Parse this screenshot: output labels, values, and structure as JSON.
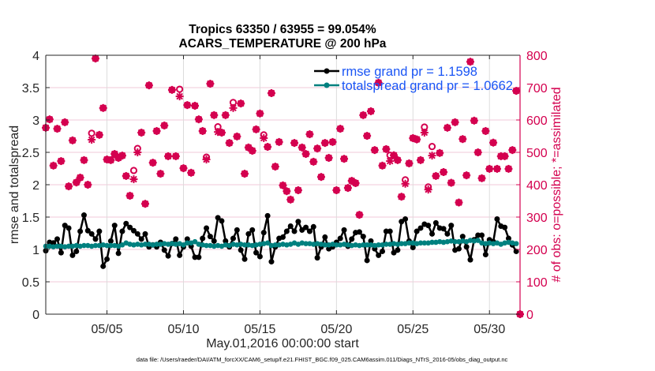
{
  "chart_data": {
    "type": "line",
    "title": [
      "Tropics 63350 / 63955 = 99.054%",
      "ACARS_TEMPERATURE @ 200 hPa"
    ],
    "xlabel": "May.01,2016 00:00:00 start",
    "ylabel_left": "rmse and totalspread",
    "ylabel_right": "# of obs: o=possible; *=assimilated",
    "footer": "data file: /Users/raeder/DAI/ATM_forcXX/CAM6_setup/f.e21.FHIST_BGC.f09_025.CAM6assim.011/Diags_NTrS_2016-05/obs_diag_output.nc",
    "x_units": "days since May.01,2016 00:00",
    "x_step_days": 0.25,
    "xlim": [
      0,
      31
    ],
    "x_ticks": [
      {
        "value": 4,
        "label": "05/05"
      },
      {
        "value": 9,
        "label": "05/10"
      },
      {
        "value": 14,
        "label": "05/15"
      },
      {
        "value": 19,
        "label": "05/20"
      },
      {
        "value": 24,
        "label": "05/25"
      },
      {
        "value": 29,
        "label": "05/30"
      }
    ],
    "ylim_left": [
      0,
      4
    ],
    "y_ticks_left": [
      "0",
      "0.5",
      "1",
      "1.5",
      "2",
      "2.5",
      "3",
      "3.5",
      "4"
    ],
    "ylim_right": [
      0,
      800
    ],
    "y_ticks_right": [
      "0",
      "100",
      "200",
      "300",
      "400",
      "500",
      "600",
      "700",
      "800"
    ],
    "grid": true,
    "legend_position": "top-right",
    "colors": {
      "rmse": "#000000",
      "totalspread": "#00807f",
      "obs": "#d4004f",
      "legend_text": "#1a55f5",
      "right_axis": "#d4004f",
      "grid_h": "#f2c9d8",
      "grid_v": "#dcdcdc"
    },
    "series": [
      {
        "name": "rmse",
        "legend": "rmse grand pr = 1.1598",
        "axis": "left",
        "values": [
          0.98,
          1.11,
          1.1,
          1.16,
          0.95,
          1.37,
          1.33,
          0.91,
          0.97,
          1.28,
          1.53,
          1.29,
          1.24,
          1.16,
          1.28,
          0.74,
          0.85,
          1.13,
          1.37,
          0.94,
          1.28,
          1.4,
          1.34,
          1.29,
          1.24,
          1.16,
          1.24,
          1.04,
          1.07,
          1.04,
          1.11,
          0.99,
          0.9,
          1.09,
          1.16,
          0.91,
          1.04,
          1.16,
          1.05,
          0.88,
          0.88,
          1.17,
          1.33,
          1.2,
          1.13,
          1.49,
          1.44,
          1.13,
          1.04,
          1.17,
          1.3,
          0.99,
          0.85,
          1.24,
          1.3,
          0.95,
          0.89,
          1.26,
          1.52,
          0.81,
          1.04,
          1.17,
          1.19,
          1.28,
          1.36,
          1.28,
          1.43,
          1.3,
          1.34,
          1.28,
          1.35,
          0.87,
          1.04,
          1.19,
          1.01,
          1.04,
          1.11,
          1.17,
          1.3,
          1.05,
          1.16,
          1.26,
          1.27,
          1.2,
          0.83,
          1.13,
          1.01,
          0.91,
          0.97,
          1.28,
          1.28,
          0.95,
          0.99,
          1.43,
          1.47,
          1.13,
          1.03,
          1.28,
          1.33,
          1.39,
          1.37,
          1.24,
          1.41,
          1.33,
          1.32,
          1.24,
          1.37,
          0.99,
          1.01,
          1.2,
          1.04,
          0.84,
          1.15,
          1.22,
          1.22,
          0.92,
          1.15,
          1.12,
          1.47,
          1.36,
          1.34,
          1.17,
          1.07,
          0.97
        ]
      },
      {
        "name": "totalspread",
        "legend": "totalspread grand pr = 1.0662",
        "axis": "left",
        "values": [
          1.05,
          1.05,
          1.04,
          1.05,
          1.05,
          1.04,
          1.05,
          1.05,
          1.06,
          1.05,
          1.06,
          1.06,
          1.05,
          1.06,
          1.06,
          1.07,
          1.06,
          1.06,
          1.06,
          1.05,
          1.07,
          1.1,
          1.08,
          1.07,
          1.08,
          1.07,
          1.08,
          1.08,
          1.07,
          1.08,
          1.08,
          1.09,
          1.08,
          1.09,
          1.08,
          1.09,
          1.07,
          1.1,
          1.1,
          1.12,
          1.08,
          1.07,
          1.06,
          1.06,
          1.05,
          1.06,
          1.05,
          1.07,
          1.06,
          1.08,
          1.07,
          1.08,
          1.07,
          1.07,
          1.06,
          1.07,
          1.08,
          1.09,
          1.1,
          1.06,
          1.07,
          1.07,
          1.08,
          1.07,
          1.08,
          1.1,
          1.08,
          1.1,
          1.09,
          1.09,
          1.08,
          1.09,
          1.08,
          1.07,
          1.07,
          1.08,
          1.07,
          1.07,
          1.08,
          1.07,
          1.06,
          1.07,
          1.06,
          1.07,
          1.07,
          1.07,
          1.06,
          1.07,
          1.07,
          1.08,
          1.08,
          1.09,
          1.08,
          1.09,
          1.09,
          1.1,
          1.1,
          1.09,
          1.1,
          1.1,
          1.1,
          1.11,
          1.11,
          1.12,
          1.11,
          1.12,
          1.13,
          1.12,
          1.12,
          1.13,
          1.12,
          1.14,
          1.13,
          1.14,
          1.1,
          1.09,
          1.1,
          1.09,
          1.1,
          1.08,
          1.1,
          1.11,
          1.1,
          1.09
        ]
      },
      {
        "name": "obs_possible",
        "marker": "o",
        "axis": "right",
        "values": [
          576,
          602,
          459,
          573,
          473,
          593,
          395,
          537,
          407,
          422,
          476,
          400,
          559,
          790,
          554,
          637,
          478,
          476,
          495,
          483,
          490,
          427,
          366,
          444,
          512,
          561,
          341,
          707,
          468,
          566,
          434,
          583,
          488,
          693,
          488,
          695,
          451,
          646,
          437,
          644,
          602,
          566,
          485,
          712,
          615,
          579,
          561,
          615,
          529,
          654,
          549,
          651,
          434,
          515,
          505,
          571,
          620,
          554,
          517,
          683,
          456,
          532,
          398,
          380,
          354,
          529,
          383,
          515,
          495,
          556,
          471,
          512,
          424,
          529,
          483,
          532,
          383,
          573,
          480,
          390,
          412,
          405,
          307,
          615,
          551,
          627,
          507,
          715,
          459,
          510,
          491,
          491,
          476,
          363,
          415,
          466,
          544,
          540,
          476,
          578,
          393,
          518,
          427,
          498,
          439,
          576,
          406,
          593,
          345,
          541,
          429,
          780,
          598,
          500,
          420,
          566,
          449,
          530,
          449,
          488,
          488,
          449,
          507,
          690,
          0
        ]
      },
      {
        "name": "obs_assimilated",
        "marker": "*",
        "axis": "right",
        "values": [
          576,
          602,
          459,
          573,
          473,
          593,
          395,
          537,
          407,
          422,
          476,
          400,
          539,
          790,
          554,
          637,
          478,
          476,
          495,
          483,
          490,
          427,
          366,
          417,
          500,
          561,
          341,
          707,
          468,
          566,
          434,
          583,
          488,
          693,
          488,
          673,
          451,
          646,
          437,
          644,
          602,
          566,
          478,
          712,
          615,
          563,
          561,
          615,
          529,
          637,
          549,
          651,
          434,
          515,
          505,
          571,
          620,
          544,
          517,
          683,
          456,
          532,
          398,
          380,
          354,
          529,
          383,
          515,
          495,
          556,
          471,
          512,
          424,
          529,
          483,
          532,
          383,
          573,
          480,
          390,
          412,
          405,
          307,
          615,
          551,
          627,
          507,
          715,
          459,
          510,
          473,
          491,
          476,
          363,
          403,
          466,
          544,
          540,
          476,
          561,
          385,
          490,
          427,
          498,
          439,
          576,
          406,
          593,
          345,
          541,
          429,
          780,
          598,
          500,
          420,
          566,
          449,
          530,
          449,
          488,
          488,
          449,
          507,
          690,
          0
        ]
      }
    ]
  }
}
